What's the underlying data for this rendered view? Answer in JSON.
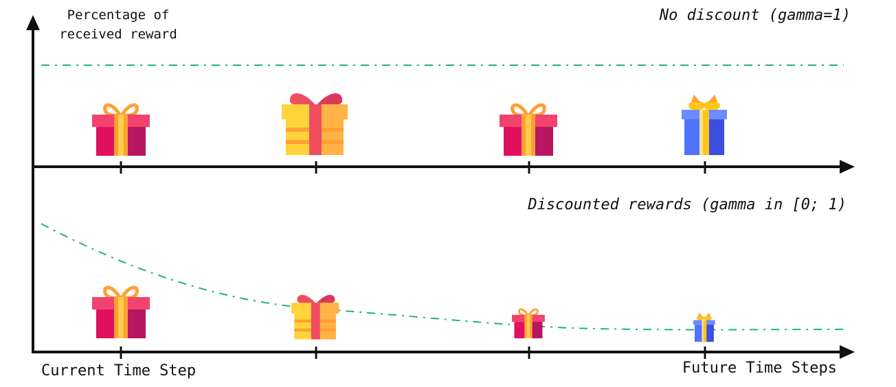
{
  "labels": {
    "y_axis_line1": "Percentage of",
    "y_axis_line2": "received reward",
    "top_title": "No discount (gamma=1)",
    "bottom_title": "Discounted rewards (gamma in [0; 1)",
    "x_left": "Current Time Step",
    "x_right": "Future Time Steps"
  },
  "colors": {
    "axis": "#111111",
    "curve": "#1db76a",
    "gift_red_body": "#e0105f",
    "gift_red_shade": "#b81660",
    "gift_red_lid": "#f2426e",
    "gift_ribbon_orange": "#ffa033",
    "gift_ribbon_light": "#ffcc4d",
    "gift_yellow_body": "#ffd43b",
    "gift_yellow_shade": "#ffb347",
    "gift_yellow_ribbon": "#f04e5e",
    "gift_blue_body": "#4f73ff",
    "gift_blue_shade": "#3d4fe0",
    "gift_blue_lid": "#6b8cff",
    "gift_blue_ribbon": "#ffc61a"
  },
  "panels": [
    {
      "id": "no-discount",
      "gifts": [
        {
          "style": "red-gift",
          "relative_size": 1.0
        },
        {
          "style": "yellow-gift",
          "relative_size": 1.0
        },
        {
          "style": "red-gift",
          "relative_size": 1.0
        },
        {
          "style": "blue-gift",
          "relative_size": 1.0
        }
      ]
    },
    {
      "id": "discounted",
      "gifts": [
        {
          "style": "red-gift",
          "relative_size": 1.0
        },
        {
          "style": "yellow-gift",
          "relative_size": 0.72
        },
        {
          "style": "red-gift",
          "relative_size": 0.55
        },
        {
          "style": "blue-gift",
          "relative_size": 0.48
        }
      ]
    }
  ]
}
